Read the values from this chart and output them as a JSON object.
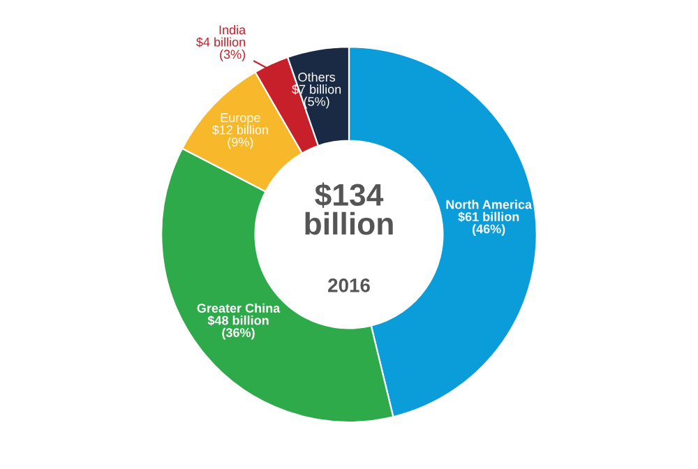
{
  "chart_data": {
    "type": "donut",
    "categories": [
      "North America",
      "Greater China",
      "Europe",
      "India",
      "Others"
    ],
    "values": [
      61,
      48,
      12,
      4,
      7
    ],
    "value_labels": [
      "$61 billion",
      "$48 billion",
      "$12 billion",
      "$4 billion",
      "$7 billion"
    ],
    "colors": [
      "#0a9dd9",
      "#2eaa4a",
      "#f7b82b",
      "#c8202a",
      "#1b2a44"
    ],
    "annotations": [
      "$134\nbillion",
      "2016",
      {
        "text": "(46%)",
        "x": "North America"
      },
      {
        "text": "(36%)",
        "x": "Greater China"
      },
      {
        "text": "(9%)",
        "x": "Europe"
      },
      {
        "text": "(3%)",
        "x": "India"
      },
      {
        "text": "(5%)",
        "x": "Others"
      }
    ]
  }
}
